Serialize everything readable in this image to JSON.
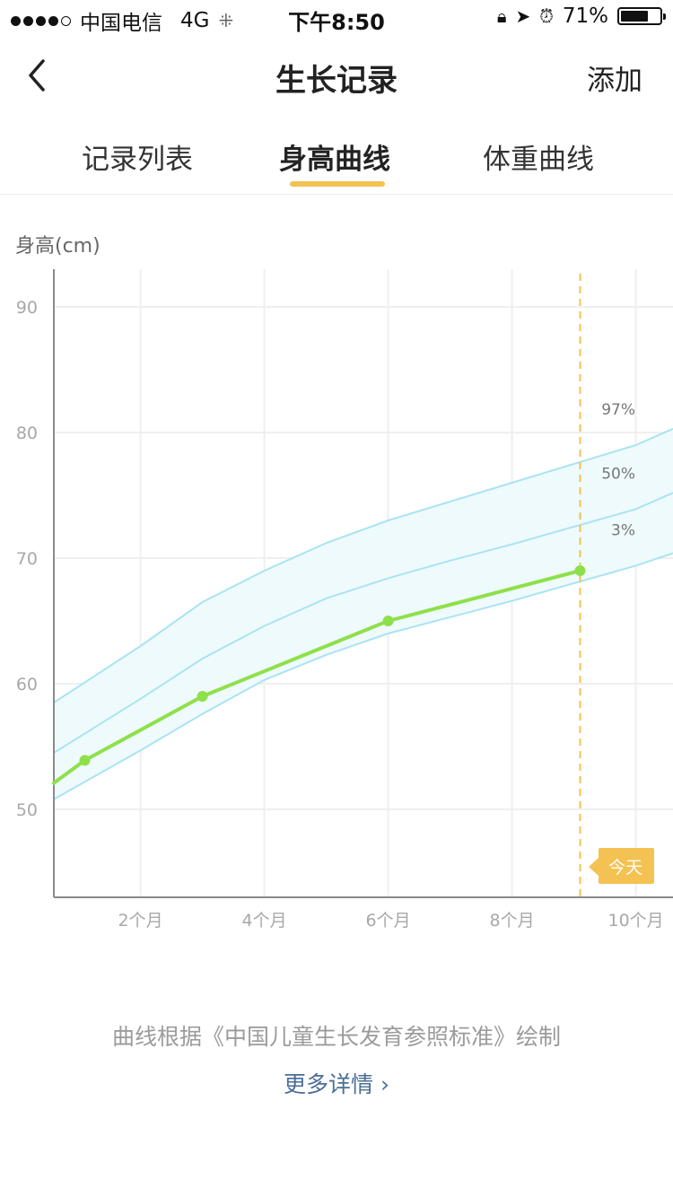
{
  "status_bar": {
    "carrier": "中国电信",
    "network": "4G",
    "time": "下午8:50",
    "battery": "71%",
    "battery_level": 0.71
  },
  "nav": {
    "title": "生长记录",
    "add_label": "添加",
    "back_icon": "chevron-left-icon"
  },
  "tabs": [
    {
      "label": "记录列表",
      "active": false
    },
    {
      "label": "身高曲线",
      "active": true
    },
    {
      "label": "体重曲线",
      "active": false
    }
  ],
  "colors": {
    "accent": "#f3c253",
    "measured_line": "#8ee04a",
    "percentile_line": "#a9e4f2",
    "percentile_band": "#effafd",
    "link": "#4a6e96"
  },
  "chart_data": {
    "type": "line",
    "ylabel": "身高(cm)",
    "xlabel": "",
    "x_unit": "months",
    "xlim": [
      0.6,
      10.6
    ],
    "ylim": [
      43,
      93
    ],
    "y_ticks": [
      50,
      60,
      70,
      80,
      90
    ],
    "x_ticks": [
      {
        "value": 2,
        "label": "2个月"
      },
      {
        "value": 4,
        "label": "4个月"
      },
      {
        "value": 6,
        "label": "6个月"
      },
      {
        "value": 8,
        "label": "8个月"
      },
      {
        "value": 10,
        "label": "10个月"
      }
    ],
    "grid": true,
    "percentiles": [
      {
        "name": "97%",
        "x": [
          0.6,
          2,
          3,
          4,
          5,
          6,
          7,
          8,
          9,
          10,
          10.6
        ],
        "y": [
          58.5,
          63.0,
          66.5,
          69.0,
          71.2,
          73.0,
          74.5,
          76.0,
          77.5,
          79.0,
          80.3
        ]
      },
      {
        "name": "50%",
        "x": [
          0.6,
          2,
          3,
          4,
          5,
          6,
          7,
          8,
          9,
          10,
          10.6
        ],
        "y": [
          54.5,
          58.8,
          62.0,
          64.6,
          66.8,
          68.4,
          69.8,
          71.1,
          72.5,
          73.9,
          75.2
        ]
      },
      {
        "name": "3%",
        "x": [
          0.6,
          2,
          3,
          4,
          5,
          6,
          7,
          8,
          9,
          10,
          10.6
        ],
        "y": [
          50.8,
          54.7,
          57.6,
          60.3,
          62.3,
          64.0,
          65.3,
          66.6,
          68.0,
          69.4,
          70.4
        ]
      }
    ],
    "series": [
      {
        "x": [
          0.6,
          1.1,
          3.0,
          6.0,
          9.1
        ],
        "y": [
          52.1,
          53.9,
          59.0,
          65.0,
          69.0
        ],
        "points": [
          false,
          true,
          true,
          true,
          true
        ]
      }
    ],
    "today": {
      "x": 9.1,
      "label": "今天"
    }
  },
  "footer": {
    "note": "曲线根据《中国儿童生长发育参照标准》绘制",
    "more_link": "更多详情 ›"
  }
}
